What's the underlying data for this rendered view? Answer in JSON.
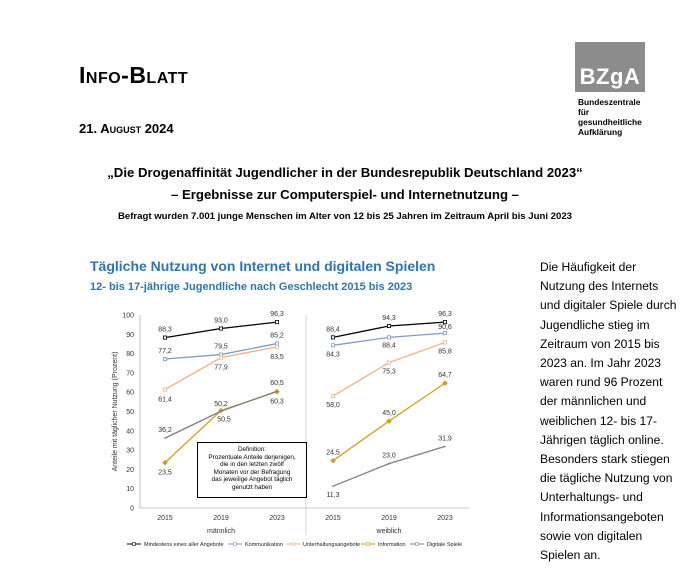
{
  "header": {
    "title": "Info-Blatt",
    "date": "21. August 2024",
    "logo": {
      "mark": "BZgA",
      "text": "Bundeszentrale\nfür\ngesundheitliche\nAufklärung"
    }
  },
  "heading": {
    "line1": "„Die Drogenaffinität Jugendlicher in der Bundesrepublik Deutschland 2023“",
    "line2": "– Ergebnisse zur Computerspiel- und Internetnutzung –",
    "line3": "Befragt wurden 7.001 junge Menschen im Alter von 12 bis 25 Jahren im Zeitraum April bis Juni 2023"
  },
  "chart_section": {
    "title": "Tägliche Nutzung von Internet und digitalen Spielen",
    "subtitle": "12- bis 17-jährige Jugendliche nach Geschlecht 2015 bis 2023"
  },
  "side_text": "Die Häufigkeit der Nutzung des Internets und digitaler Spiele durch Jugendliche stieg im Zeitraum von 2015 bis 2023 an. Im Jahr 2023 waren rund 96 Prozent der männlichen und weiblichen 12- bis 17-Jährigen täglich online. Besonders stark stiegen die tägliche Nutzung von Unterhaltungs- und Informationsangeboten sowie von digitalen Spielen an.",
  "definition_box": "Definition:\nProzentuale Anteile derjenigen,\ndie in den letzten zwölf\nMonaten vor der Befragung\ndas jeweilige Angebot täglich\ngenutzt haben",
  "chart_data": {
    "type": "line",
    "title": "Tägliche Nutzung von Internet und digitalen Spielen",
    "subtitle": "12- bis 17-jährige Jugendliche nach Geschlecht 2015 bis 2023",
    "ylabel": "Anteile mit täglicher Nutzung (Prozent)",
    "ylim": [
      0,
      100
    ],
    "yticks": [
      0,
      10,
      20,
      30,
      40,
      50,
      60,
      70,
      80,
      90,
      100
    ],
    "groups": [
      "männlich",
      "weiblich"
    ],
    "x": [
      "2015",
      "2019",
      "2023"
    ],
    "legend_position": "bottom",
    "series": [
      {
        "name": "Mindestens eines aller Angebote",
        "color": "#000000",
        "values": {
          "männlich": [
            88.3,
            93.0,
            96.3
          ],
          "weiblich": [
            88.4,
            94.3,
            96.3
          ]
        },
        "labels": {
          "männlich": [
            "88,3",
            "93,0",
            "96,3"
          ],
          "weiblich": [
            "88,4",
            "94,3",
            "96,3"
          ]
        }
      },
      {
        "name": "Kommunikation",
        "color": "#7f9cc8",
        "values": {
          "männlich": [
            77.2,
            79.5,
            85.2
          ],
          "weiblich": [
            84.3,
            88.4,
            90.6
          ]
        },
        "labels": {
          "männlich": [
            "77,2",
            "79,5",
            "85,2"
          ],
          "weiblich": [
            "84,3",
            "88,4",
            "90,6"
          ]
        }
      },
      {
        "name": "Unterhaltungsangebote",
        "color": "#f4b183",
        "values": {
          "männlich": [
            61.4,
            77.9,
            83.5
          ],
          "weiblich": [
            58.0,
            75.3,
            85.8
          ]
        },
        "labels": {
          "männlich": [
            "61,4",
            "77,9",
            "83,5"
          ],
          "weiblich": [
            "58,0",
            "75,3",
            "85,8"
          ]
        }
      },
      {
        "name": "Information",
        "color": "#d4a017",
        "values": {
          "männlich": [
            23.5,
            50.5,
            60.3
          ],
          "weiblich": [
            24.5,
            45.0,
            64.7
          ]
        },
        "labels": {
          "männlich": [
            "23,5",
            "50,5",
            "60,3"
          ],
          "weiblich": [
            "24,5",
            "45,0",
            "64,7"
          ]
        }
      },
      {
        "name": "Digitale Spiele",
        "color": "#808080",
        "values": {
          "männlich": [
            36.2,
            50.2,
            60.5
          ],
          "weiblich": [
            11.3,
            23.0,
            31.9
          ]
        },
        "labels": {
          "männlich": [
            "36,2",
            "50,2",
            "60,5"
          ],
          "weiblich": [
            "11,3",
            "23,0",
            "31,9"
          ]
        }
      }
    ]
  }
}
